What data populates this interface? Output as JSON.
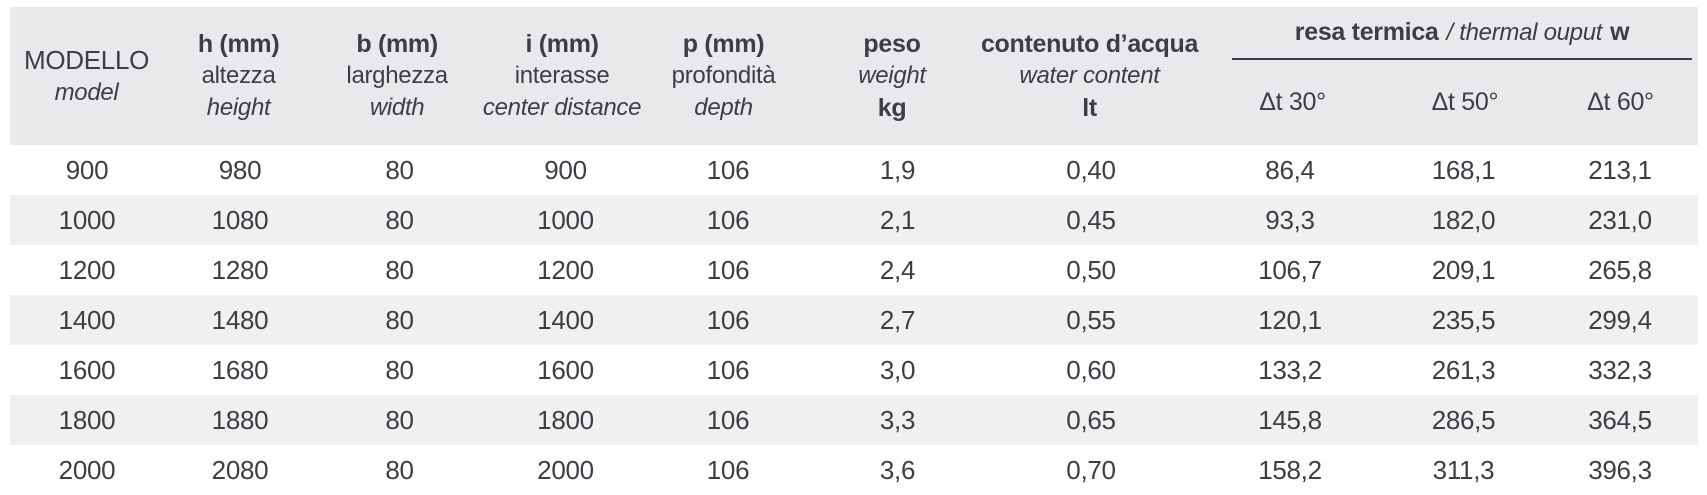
{
  "theme": {
    "header-bg": "#e9e9eb",
    "stripe-bg": "#f0f0f1",
    "text-color": "#3b3e44",
    "rule-color": "#3b3e44"
  },
  "table": {
    "columns": [
      {
        "line1": "MODELLO",
        "line2": "model"
      },
      {
        "line1": "h (mm)",
        "line2": "altezza",
        "line3": "height"
      },
      {
        "line1": "b (mm)",
        "line2": "larghezza",
        "line3": "width"
      },
      {
        "line1": "i (mm)",
        "line2": "interasse",
        "line3": "center distance"
      },
      {
        "line1": "p (mm)",
        "line2": "profondità",
        "line3": "depth"
      },
      {
        "line1": "peso",
        "line2": "weight",
        "line3": "kg"
      },
      {
        "line1": "contenuto d’acqua",
        "line2": "water content",
        "line3": "lt"
      }
    ],
    "group": {
      "title_bold": "resa termica",
      "title_italic": "/ thermal ouput",
      "title_unit": "w",
      "subcols": [
        "Δt 30°",
        "Δt 50°",
        "Δt 60°"
      ]
    },
    "rows": [
      [
        "900",
        "980",
        "80",
        "900",
        "106",
        "1,9",
        "0,40",
        "86,4",
        "168,1",
        "213,1"
      ],
      [
        "1000",
        "1080",
        "80",
        "1000",
        "106",
        "2,1",
        "0,45",
        "93,3",
        "182,0",
        "231,0"
      ],
      [
        "1200",
        "1280",
        "80",
        "1200",
        "106",
        "2,4",
        "0,50",
        "106,7",
        "209,1",
        "265,8"
      ],
      [
        "1400",
        "1480",
        "80",
        "1400",
        "106",
        "2,7",
        "0,55",
        "120,1",
        "235,5",
        "299,4"
      ],
      [
        "1600",
        "1680",
        "80",
        "1600",
        "106",
        "3,0",
        "0,60",
        "133,2",
        "261,3",
        "332,3"
      ],
      [
        "1800",
        "1880",
        "80",
        "1800",
        "106",
        "3,3",
        "0,65",
        "145,8",
        "286,5",
        "364,5"
      ],
      [
        "2000",
        "2080",
        "80",
        "2000",
        "106",
        "3,6",
        "0,70",
        "158,2",
        "311,3",
        "396,3"
      ]
    ]
  }
}
